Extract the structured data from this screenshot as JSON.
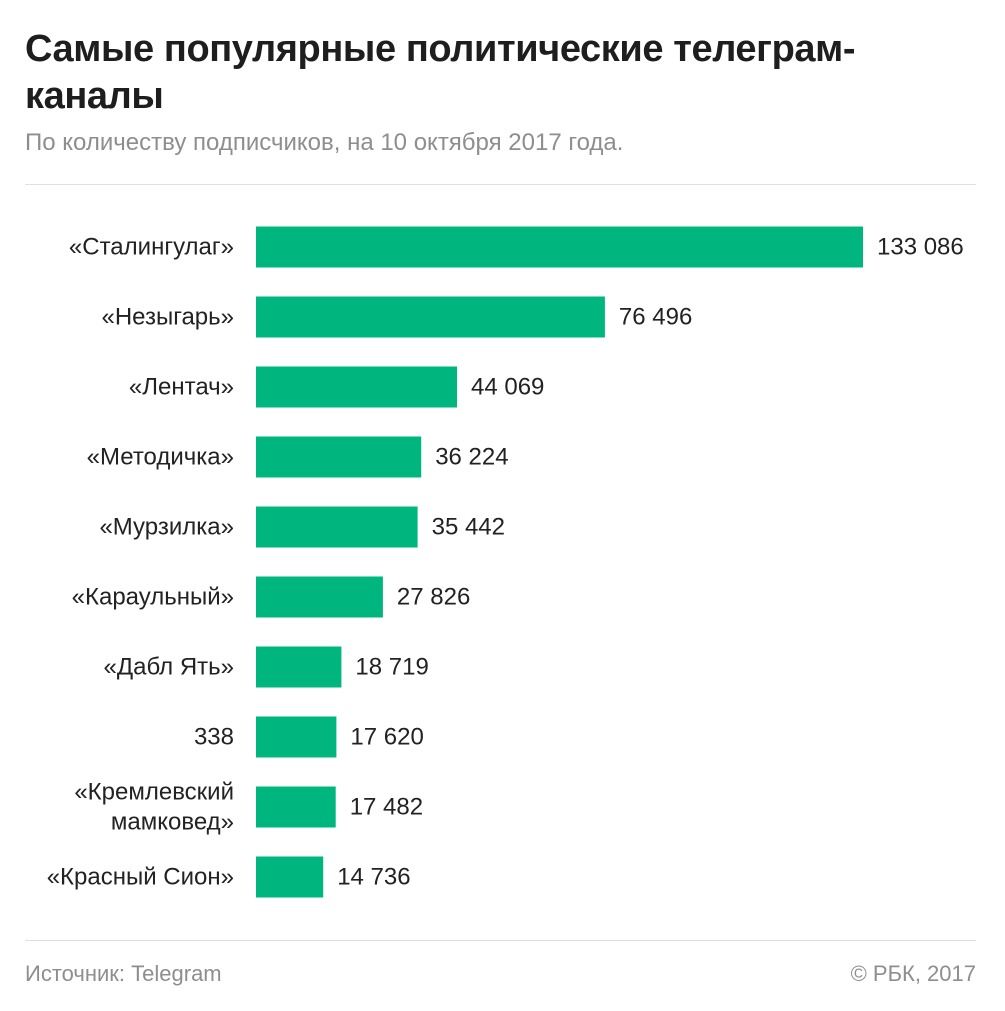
{
  "title": "Самые популярные политические телеграм-каналы",
  "subtitle": "По количеству подписчиков, на 10 октября 2017 года.",
  "footer": {
    "source": "Источник: Telegram",
    "copyright": "© РБК, 2017"
  },
  "colors": {
    "bar": "#00b67f",
    "text": "#222222",
    "muted": "#8e8e8e"
  },
  "chart_data": {
    "type": "bar",
    "orientation": "horizontal",
    "categories": [
      "«Сталингулаг»",
      "«Незыгарь»",
      "«Лентач»",
      "«Методичка»",
      "«Мурзилка»",
      "«Караульный»",
      "«Дабл Ять»",
      "338",
      "«Кремлевский мамковед»",
      "«Красный Сион»"
    ],
    "values": [
      133086,
      76496,
      44069,
      36224,
      35442,
      27826,
      18719,
      17620,
      17482,
      14736
    ],
    "value_labels": [
      "133 086",
      "76 496",
      "44 069",
      "36 224",
      "35 442",
      "27 826",
      "18 719",
      "17 620",
      "17 482",
      "14 736"
    ],
    "xlim": [
      0,
      133086
    ],
    "grid": false,
    "legend": "none"
  }
}
